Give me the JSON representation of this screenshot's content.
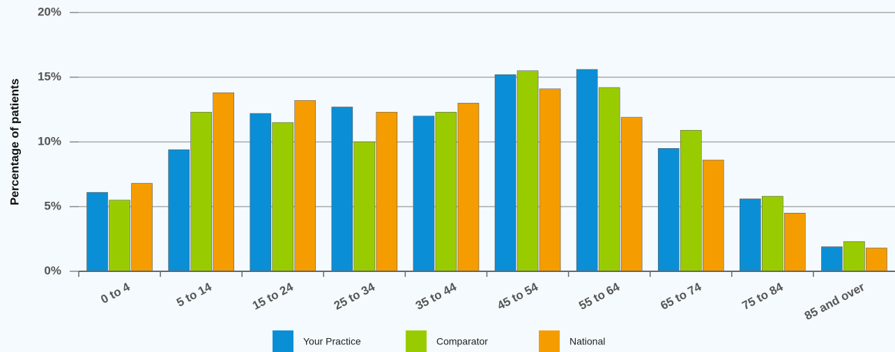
{
  "chart_data": {
    "type": "bar",
    "y_label": "Percentage of patients",
    "categories": [
      "0 to 4",
      "5 to 14",
      "15 to 24",
      "25 to 34",
      "35 to 44",
      "45 to 54",
      "55 to 64",
      "65 to 74",
      "75 to 84",
      "85 and over"
    ],
    "series": [
      {
        "name": "Your Practice",
        "color": "#0a8fd6",
        "values": [
          6.1,
          9.4,
          12.2,
          12.7,
          12.0,
          15.2,
          15.6,
          9.5,
          5.6,
          1.9
        ]
      },
      {
        "name": "Comparator",
        "color": "#99cc00",
        "values": [
          5.5,
          12.3,
          11.5,
          10.0,
          12.3,
          15.5,
          14.2,
          10.9,
          5.8,
          2.3
        ]
      },
      {
        "name": "National",
        "color": "#f59c00",
        "values": [
          6.8,
          13.8,
          13.2,
          12.3,
          13.0,
          14.1,
          11.9,
          8.6,
          4.5,
          1.8
        ]
      }
    ],
    "ylim": [
      0,
      20
    ],
    "yticks": [
      {
        "value": 0,
        "label": "0%"
      },
      {
        "value": 5,
        "label": "5%"
      },
      {
        "value": 10,
        "label": "10%"
      },
      {
        "value": 15,
        "label": "15%"
      },
      {
        "value": 20,
        "label": "20%"
      }
    ],
    "grid": true,
    "legend": "bottom"
  }
}
